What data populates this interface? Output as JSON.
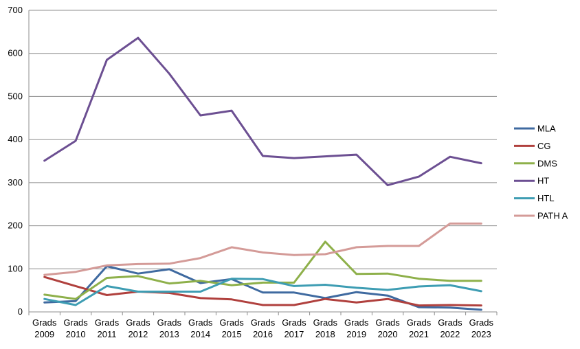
{
  "chart_data": {
    "type": "line",
    "title": "",
    "xlabel": "",
    "ylabel": "",
    "categories": [
      [
        "Grads",
        "2009"
      ],
      [
        "Grads",
        "2010"
      ],
      [
        "Grads",
        "2011"
      ],
      [
        "Grads",
        "2012"
      ],
      [
        "Grads",
        "2013"
      ],
      [
        "Grads",
        "2014"
      ],
      [
        "Grads",
        "2015"
      ],
      [
        "Grads",
        "2016"
      ],
      [
        "Grads",
        "2017"
      ],
      [
        "Grads",
        "2018"
      ],
      [
        "Grads",
        "2019"
      ],
      [
        "Grads",
        "2020"
      ],
      [
        "Grads",
        "2021"
      ],
      [
        "Grads",
        "2022"
      ],
      [
        "Grads",
        "2023"
      ]
    ],
    "ylim": [
      0,
      700
    ],
    "yticks": [
      "0",
      "100",
      "200",
      "300",
      "400",
      "500",
      "600",
      "700"
    ],
    "grid": "horizontal",
    "legend_position": "right",
    "series": [
      {
        "name": "MLA",
        "color": "#3F6AA0",
        "values": [
          22,
          25,
          106,
          89,
          99,
          67,
          76,
          45,
          45,
          32,
          46,
          38,
          11,
          10,
          5
        ]
      },
      {
        "name": "CG",
        "color": "#B0403D",
        "values": [
          81,
          60,
          39,
          47,
          44,
          32,
          29,
          16,
          16,
          30,
          22,
          30,
          15,
          16,
          15
        ]
      },
      {
        "name": "DMS",
        "color": "#8EB04A",
        "values": [
          40,
          30,
          79,
          83,
          66,
          72,
          62,
          68,
          68,
          163,
          88,
          89,
          77,
          72,
          72
        ]
      },
      {
        "name": "HT",
        "color": "#6C4F92",
        "values": [
          351,
          397,
          585,
          636,
          553,
          456,
          467,
          362,
          357,
          361,
          365,
          294,
          314,
          360,
          345
        ]
      },
      {
        "name": "HTL",
        "color": "#3E9DB3",
        "values": [
          30,
          16,
          60,
          47,
          47,
          47,
          77,
          76,
          60,
          63,
          56,
          51,
          59,
          62,
          48
        ]
      },
      {
        "name": "PATH A",
        "color": "#D49B98",
        "values": [
          86,
          93,
          108,
          111,
          112,
          125,
          150,
          138,
          132,
          134,
          150,
          153,
          153,
          205,
          205
        ]
      }
    ]
  },
  "colors": {
    "grid": "#8C8C8C",
    "axis": "#8C8C8C",
    "background": "#FFFFFF"
  }
}
